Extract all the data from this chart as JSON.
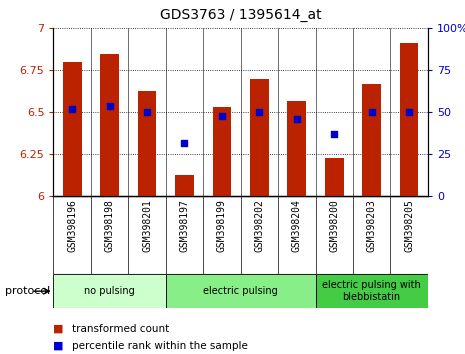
{
  "title": "GDS3763 / 1395614_at",
  "samples": [
    "GSM398196",
    "GSM398198",
    "GSM398201",
    "GSM398197",
    "GSM398199",
    "GSM398202",
    "GSM398204",
    "GSM398200",
    "GSM398203",
    "GSM398205"
  ],
  "transformed_counts": [
    6.8,
    6.85,
    6.63,
    6.13,
    6.53,
    6.7,
    6.57,
    6.23,
    6.67,
    6.91
  ],
  "percentile_ranks": [
    52,
    54,
    50,
    32,
    48,
    50,
    46,
    37,
    50,
    50
  ],
  "ylim_left": [
    6.0,
    7.0
  ],
  "ylim_right": [
    0,
    100
  ],
  "yticks_left": [
    6.0,
    6.25,
    6.5,
    6.75,
    7.0
  ],
  "ytick_labels_left": [
    "6",
    "6.25",
    "6.5",
    "6.75",
    "7"
  ],
  "yticks_right": [
    0,
    25,
    50,
    75,
    100
  ],
  "ytick_labels_right": [
    "0",
    "25",
    "50",
    "75",
    "100%"
  ],
  "bar_color": "#bb2200",
  "marker_color": "#0000cc",
  "groups": [
    {
      "label": "no pulsing",
      "spans": [
        0,
        2
      ],
      "color": "#ccffcc"
    },
    {
      "label": "electric pulsing",
      "spans": [
        3,
        6
      ],
      "color": "#88ee88"
    },
    {
      "label": "electric pulsing with\nblebbistatin",
      "spans": [
        7,
        9
      ],
      "color": "#44cc44"
    }
  ],
  "protocol_label": "protocol",
  "legend_items": [
    {
      "label": "transformed count",
      "color": "#bb2200"
    },
    {
      "label": "percentile rank within the sample",
      "color": "#0000cc"
    }
  ],
  "grid_color": "#000000",
  "bg_plot": "#ffffff",
  "tick_label_bg": "#cccccc",
  "bar_width": 0.5,
  "title_fontsize": 10,
  "axis_fontsize": 8,
  "label_fontsize": 7,
  "legend_fontsize": 7.5
}
